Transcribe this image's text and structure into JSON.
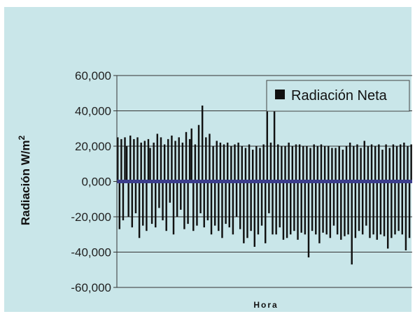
{
  "colors": {
    "background": "#c9e6e9",
    "outer": "#ffffff",
    "bars": "#111111",
    "zero_line": "#3b3d8c",
    "gridline": "#333333",
    "legend_box_border": "#444444"
  },
  "chart_data": {
    "type": "bar",
    "title": "",
    "xlabel": "Hora",
    "ylabel": "Radiación W/m",
    "ylabel_superscript": "2",
    "ylim": [
      -60000,
      60000
    ],
    "yticks": [
      60000,
      40000,
      20000,
      0,
      -20000,
      -40000,
      -60000
    ],
    "ytick_labels": [
      "60,000",
      "40,000",
      "20,000",
      "0,000",
      "-20,000",
      "-40,000",
      "-60,000"
    ],
    "grid": true,
    "legend_position": "top-right",
    "series": [
      {
        "name": "Radiación Neta",
        "values": [
          25000,
          -27000,
          24000,
          -22000,
          25000,
          20000,
          -20000,
          26000,
          -26000,
          24000,
          -18000,
          25000,
          -32000,
          22000,
          -25000,
          23000,
          -28000,
          24000,
          19000,
          -24000,
          22000,
          -26000,
          27000,
          -15000,
          25000,
          -22000,
          21000,
          -28000,
          24000,
          -12000,
          26000,
          -30000,
          23000,
          -20000,
          25000,
          -16000,
          22000,
          -27000,
          28000,
          -24000,
          24000,
          30000,
          -28000,
          21000,
          -25000,
          32000,
          -18000,
          43000,
          -26000,
          25000,
          -22000,
          27000,
          -30000,
          20000,
          -25000,
          23000,
          -28000,
          22000,
          -32000,
          21000,
          -24000,
          22000,
          -26000,
          20000,
          -30000,
          21000,
          -20000,
          22000,
          -27000,
          20000,
          -35000,
          19000,
          -32000,
          21000,
          -28000,
          18000,
          -37000,
          20000,
          -30000,
          19000,
          -25000,
          21000,
          -35000,
          40000,
          -18000,
          22000,
          -30000,
          47000,
          -30000,
          21000,
          -26000,
          20000,
          -33000,
          20000,
          -32000,
          22000,
          -30000,
          20000,
          -28000,
          21000,
          -33000,
          21000,
          -29000,
          20000,
          -30000,
          20000,
          -43000,
          19000,
          -28000,
          21000,
          -30000,
          20000,
          -35000,
          21000,
          -29000,
          20000,
          -30000,
          20000,
          -32000,
          19000,
          -25000,
          19000,
          -30000,
          20000,
          -33000,
          18000,
          -31000,
          20000,
          -30000,
          22000,
          -47000,
          20000,
          -32000,
          21000,
          -28000,
          19000,
          -30000,
          23000,
          -25000,
          20000,
          -32000,
          21000,
          -30000,
          20000,
          -33000,
          21000,
          -30000,
          18000,
          -31000,
          21000,
          -38000,
          19000,
          -32000,
          21000,
          -30000,
          20000,
          -28000,
          21000,
          -30000,
          22000,
          -39000,
          20000,
          -32000,
          21000
        ]
      }
    ]
  }
}
